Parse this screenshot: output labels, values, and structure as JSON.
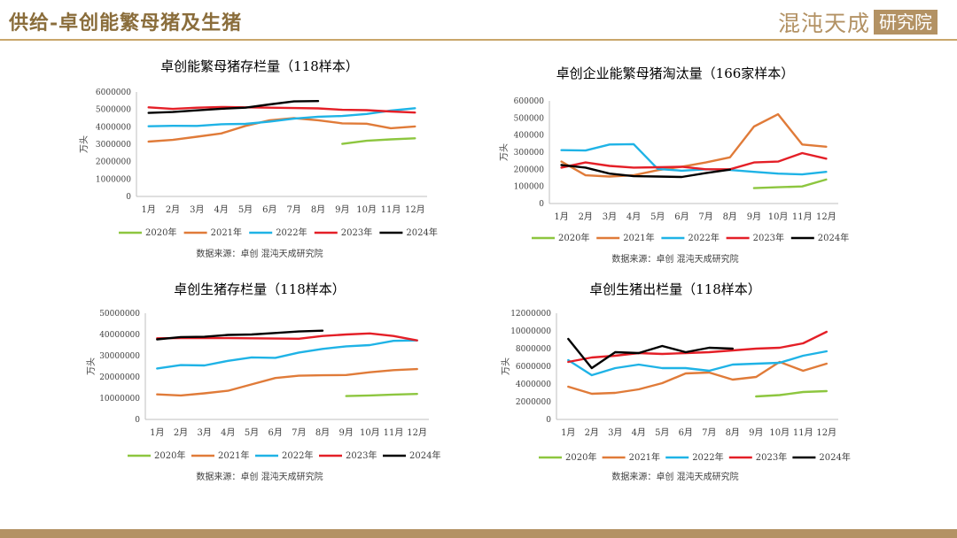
{
  "page": {
    "title": "供给-卓创能繁母猪及生猪",
    "logo_text": "混沌天成",
    "logo_box": "研究院"
  },
  "colors": {
    "2020年": "#8dc63f",
    "2021年": "#e07b39",
    "2022年": "#1fb3e6",
    "2023年": "#e41f27",
    "2024年": "#000000"
  },
  "chart_data": [
    {
      "type": "line",
      "title": "卓创能繁母猪存栏量（118样本）",
      "ylabel": "万头",
      "source": "数据来源：卓创 混沌天成研究院",
      "categories": [
        "1月",
        "2月",
        "3月",
        "4月",
        "5月",
        "6月",
        "7月",
        "8月",
        "9月",
        "10月",
        "11月",
        "12月"
      ],
      "ylim": [
        0,
        6000000
      ],
      "yticks": [
        "0",
        "1000000",
        "2000000",
        "3000000",
        "4000000",
        "5000000",
        "6000000"
      ],
      "series": [
        {
          "name": "2020年",
          "values": [
            null,
            null,
            null,
            null,
            null,
            null,
            null,
            null,
            3020000,
            3200000,
            3280000,
            3340000
          ]
        },
        {
          "name": "2021年",
          "values": [
            3150000,
            3250000,
            3430000,
            3620000,
            4050000,
            4380000,
            4500000,
            4380000,
            4200000,
            4180000,
            3920000,
            4020000
          ]
        },
        {
          "name": "2022年",
          "values": [
            4030000,
            4060000,
            4050000,
            4150000,
            4170000,
            4300000,
            4470000,
            4580000,
            4620000,
            4740000,
            4930000,
            5070000
          ]
        },
        {
          "name": "2023年",
          "values": [
            5120000,
            5030000,
            5100000,
            5140000,
            5120000,
            5100000,
            5080000,
            5060000,
            4980000,
            4960000,
            4880000,
            4820000
          ]
        },
        {
          "name": "2024年",
          "values": [
            4800000,
            4850000,
            4950000,
            5040000,
            5100000,
            5290000,
            5460000,
            5480000,
            null,
            null,
            null,
            null
          ]
        }
      ]
    },
    {
      "type": "line",
      "title": "卓创企业能繁母猪淘汰量（166家样本）",
      "ylabel": "万头",
      "source": "数据来源：卓创 混沌天成研究院",
      "categories": [
        "1月",
        "2月",
        "3月",
        "4月",
        "5月",
        "6月",
        "7月",
        "8月",
        "9月",
        "10月",
        "11月",
        "12月"
      ],
      "ylim": [
        0,
        600000
      ],
      "yticks": [
        "0",
        "100000",
        "200000",
        "300000",
        "400000",
        "500000",
        "600000"
      ],
      "series": [
        {
          "name": "2020年",
          "values": [
            null,
            null,
            null,
            null,
            null,
            null,
            null,
            null,
            90000,
            95000,
            100000,
            140000
          ]
        },
        {
          "name": "2021年",
          "values": [
            245000,
            165000,
            158000,
            165000,
            195000,
            215000,
            240000,
            270000,
            450000,
            522000,
            345000,
            332000
          ]
        },
        {
          "name": "2022年",
          "values": [
            312000,
            310000,
            345000,
            347000,
            202000,
            192000,
            200000,
            196000,
            185000,
            175000,
            170000,
            185000
          ]
        },
        {
          "name": "2023年",
          "values": [
            210000,
            240000,
            220000,
            210000,
            212000,
            215000,
            200000,
            200000,
            240000,
            245000,
            295000,
            262000
          ]
        },
        {
          "name": "2024年",
          "values": [
            225000,
            210000,
            175000,
            160000,
            158000,
            155000,
            178000,
            198000,
            null,
            null,
            null,
            null
          ]
        }
      ]
    },
    {
      "type": "line",
      "title": "卓创生猪存栏量（118样本）",
      "ylabel": "万头",
      "source": "数据来源：卓创 混沌天成研究院",
      "categories": [
        "1月",
        "2月",
        "3月",
        "4月",
        "5月",
        "6月",
        "7月",
        "8月",
        "9月",
        "10月",
        "11月",
        "12月"
      ],
      "ylim": [
        0,
        50000000
      ],
      "yticks": [
        "0",
        "10000000",
        "20000000",
        "30000000",
        "40000000",
        "50000000"
      ],
      "series": [
        {
          "name": "2020年",
          "values": [
            null,
            null,
            null,
            null,
            null,
            null,
            null,
            null,
            11000000,
            11300000,
            11700000,
            12000000
          ]
        },
        {
          "name": "2021年",
          "values": [
            11800000,
            11300000,
            12300000,
            13500000,
            16500000,
            19500000,
            20600000,
            20800000,
            20900000,
            22200000,
            23200000,
            23700000
          ]
        },
        {
          "name": "2022年",
          "values": [
            24000000,
            25600000,
            25400000,
            27600000,
            29200000,
            29000000,
            31500000,
            33200000,
            34400000,
            35000000,
            37000000,
            37200000
          ]
        },
        {
          "name": "2023年",
          "values": [
            38200000,
            38300000,
            38300000,
            38300000,
            38200000,
            38100000,
            38000000,
            39300000,
            40000000,
            40500000,
            39300000,
            37200000
          ]
        },
        {
          "name": "2024年",
          "values": [
            37700000,
            38800000,
            38900000,
            39800000,
            40000000,
            40700000,
            41400000,
            41800000,
            null,
            null,
            null,
            null
          ]
        }
      ]
    },
    {
      "type": "line",
      "title": "卓创生猪出栏量（118样本）",
      "ylabel": "万头",
      "source": "数据来源：卓创 混沌天成研究院",
      "categories": [
        "1月",
        "2月",
        "3月",
        "4月",
        "5月",
        "6月",
        "7月",
        "8月",
        "9月",
        "10月",
        "11月",
        "12月"
      ],
      "ylim": [
        0,
        12000000
      ],
      "yticks": [
        "0",
        "2000000",
        "4000000",
        "6000000",
        "8000000",
        "10000000",
        "12000000"
      ],
      "series": [
        {
          "name": "2020年",
          "values": [
            null,
            null,
            null,
            null,
            null,
            null,
            null,
            null,
            2600000,
            2750000,
            3100000,
            3200000
          ]
        },
        {
          "name": "2021年",
          "values": [
            3700000,
            2900000,
            3000000,
            3400000,
            4100000,
            5200000,
            5300000,
            4500000,
            4800000,
            6500000,
            5500000,
            6300000
          ]
        },
        {
          "name": "2022年",
          "values": [
            6700000,
            5000000,
            5800000,
            6200000,
            5800000,
            5800000,
            5500000,
            6200000,
            6300000,
            6400000,
            7200000,
            7700000
          ]
        },
        {
          "name": "2023年",
          "values": [
            6500000,
            7000000,
            7200000,
            7500000,
            7400000,
            7500000,
            7600000,
            7800000,
            8000000,
            8100000,
            8600000,
            9900000
          ]
        },
        {
          "name": "2024年",
          "values": [
            9100000,
            5800000,
            7600000,
            7500000,
            8300000,
            7600000,
            8100000,
            8000000,
            null,
            null,
            null,
            null
          ]
        }
      ]
    }
  ]
}
